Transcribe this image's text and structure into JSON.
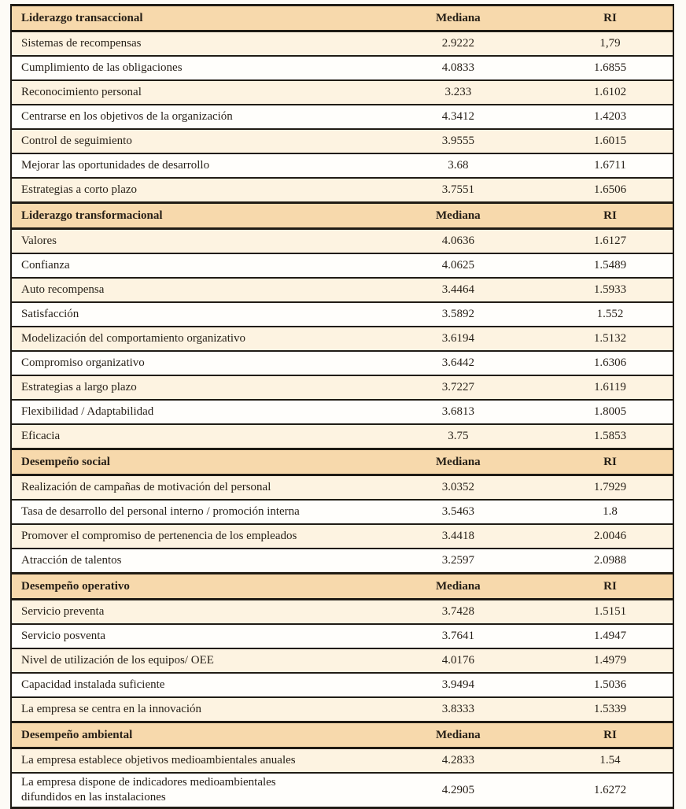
{
  "table": {
    "columns": {
      "mediana": "Mediana",
      "ri": "RI"
    },
    "sections": [
      {
        "title": "Liderazgo transaccional",
        "rows": [
          {
            "label": "Sistemas de recompensas",
            "mediana": "2.9222",
            "ri": "1,79"
          },
          {
            "label": "Cumplimiento de las obligaciones",
            "mediana": "4.0833",
            "ri": "1.6855"
          },
          {
            "label": "Reconocimiento personal",
            "mediana": "3.233",
            "ri": "1.6102"
          },
          {
            "label": "Centrarse en los objetivos de la organización",
            "mediana": "4.3412",
            "ri": "1.4203"
          },
          {
            "label": "Control de seguimiento",
            "mediana": "3.9555",
            "ri": "1.6015"
          },
          {
            "label": "Mejorar las oportunidades de desarrollo",
            "mediana": "3.68",
            "ri": "1.6711"
          },
          {
            "label": "Estrategias a corto plazo",
            "mediana": "3.7551",
            "ri": "1.6506"
          }
        ]
      },
      {
        "title": "Liderazgo transformacional",
        "rows": [
          {
            "label": "Valores",
            "mediana": "4.0636",
            "ri": "1.6127"
          },
          {
            "label": "Confianza",
            "mediana": "4.0625",
            "ri": "1.5489"
          },
          {
            "label": "Auto recompensa",
            "mediana": "3.4464",
            "ri": "1.5933"
          },
          {
            "label": "Satisfacción",
            "mediana": "3.5892",
            "ri": "1.552"
          },
          {
            "label": "Modelización del comportamiento organizativo",
            "mediana": "3.6194",
            "ri": "1.5132"
          },
          {
            "label": "Compromiso organizativo",
            "mediana": "3.6442",
            "ri": "1.6306"
          },
          {
            "label": "Estrategias a largo plazo",
            "mediana": "3.7227",
            "ri": "1.6119"
          },
          {
            "label": "Flexibilidad / Adaptabilidad",
            "mediana": "3.6813",
            "ri": "1.8005"
          },
          {
            "label": "Eficacia",
            "mediana": "3.75",
            "ri": "1.5853"
          }
        ]
      },
      {
        "title": "Desempeño social",
        "rows": [
          {
            "label": "Realización de campañas de motivación del personal",
            "mediana": "3.0352",
            "ri": "1.7929"
          },
          {
            "label": "Tasa de desarrollo del personal interno / promoción interna",
            "mediana": "3.5463",
            "ri": "1.8"
          },
          {
            "label": "Promover el compromiso de pertenencia de los empleados",
            "mediana": "3.4418",
            "ri": "2.0046"
          },
          {
            "label": "Atracción de talentos",
            "mediana": "3.2597",
            "ri": "2.0988"
          }
        ]
      },
      {
        "title": "Desempeño operativo",
        "rows": [
          {
            "label": "Servicio preventa",
            "mediana": "3.7428",
            "ri": "1.5151"
          },
          {
            "label": "Servicio posventa",
            "mediana": "3.7641",
            "ri": "1.4947"
          },
          {
            "label": "Nivel de utilización de los equipos/ OEE",
            "mediana": "4.0176",
            "ri": "1.4979"
          },
          {
            "label": "Capacidad instalada suficiente",
            "mediana": "3.9494",
            "ri": "1.5036"
          },
          {
            "label": "La empresa se centra en la innovación",
            "mediana": "3.8333",
            "ri": "1.5339"
          }
        ]
      },
      {
        "title": "Desempeño ambiental",
        "rows": [
          {
            "label": "La empresa establece objetivos medioambientales anuales",
            "mediana": "4.2833",
            "ri": "1.54"
          },
          {
            "label": "La empresa dispone de indicadores medioambientales\ndifundidos en las instalaciones",
            "mediana": "4.2905",
            "ri": "1.6272"
          }
        ]
      }
    ]
  },
  "colors": {
    "section_header_bg": "#f7d9ac",
    "row_alt_bg": "#fdf3e1",
    "row_plain_bg": "#fffefb",
    "border": "#201c15",
    "text": "#261f17",
    "page_bg": "#fdfbf6"
  }
}
